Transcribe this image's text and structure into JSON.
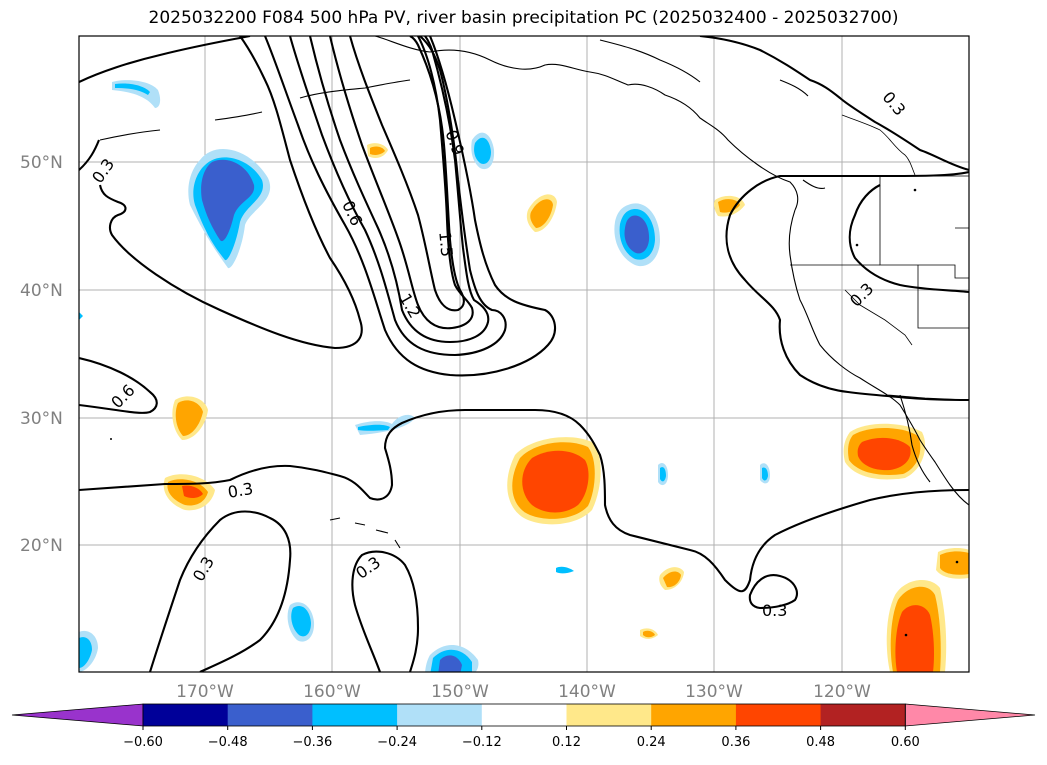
{
  "title": "2025032200 F084 500 hPa PV, river basin precipitation PC (2025032400 - 2025032700)",
  "lat_labels": [
    "50°N",
    "40°N",
    "30°N",
    "20°N"
  ],
  "lon_labels": [
    "170°W",
    "160°W",
    "150°W",
    "140°W",
    "130°W",
    "120°W"
  ],
  "contour_labels": [
    "0.3",
    "0.6",
    "0.9",
    "1.2",
    "1.5",
    "0.6",
    "0.3",
    "0.3",
    "0.3",
    "0.3",
    "0.3",
    "0.3"
  ],
  "colorbar": {
    "ticks": [
      "−0.60",
      "−0.48",
      "−0.36",
      "−0.24",
      "−0.12",
      "0.12",
      "0.24",
      "0.36",
      "0.48",
      "0.60"
    ],
    "colors": [
      "#9933cc",
      "#000099",
      "#3a5fcd",
      "#00bfff",
      "#b0e0f8",
      "#ffffff",
      "#ffe88a",
      "#ffa500",
      "#ff4500",
      "#b22222",
      "#ff88a8"
    ]
  }
}
